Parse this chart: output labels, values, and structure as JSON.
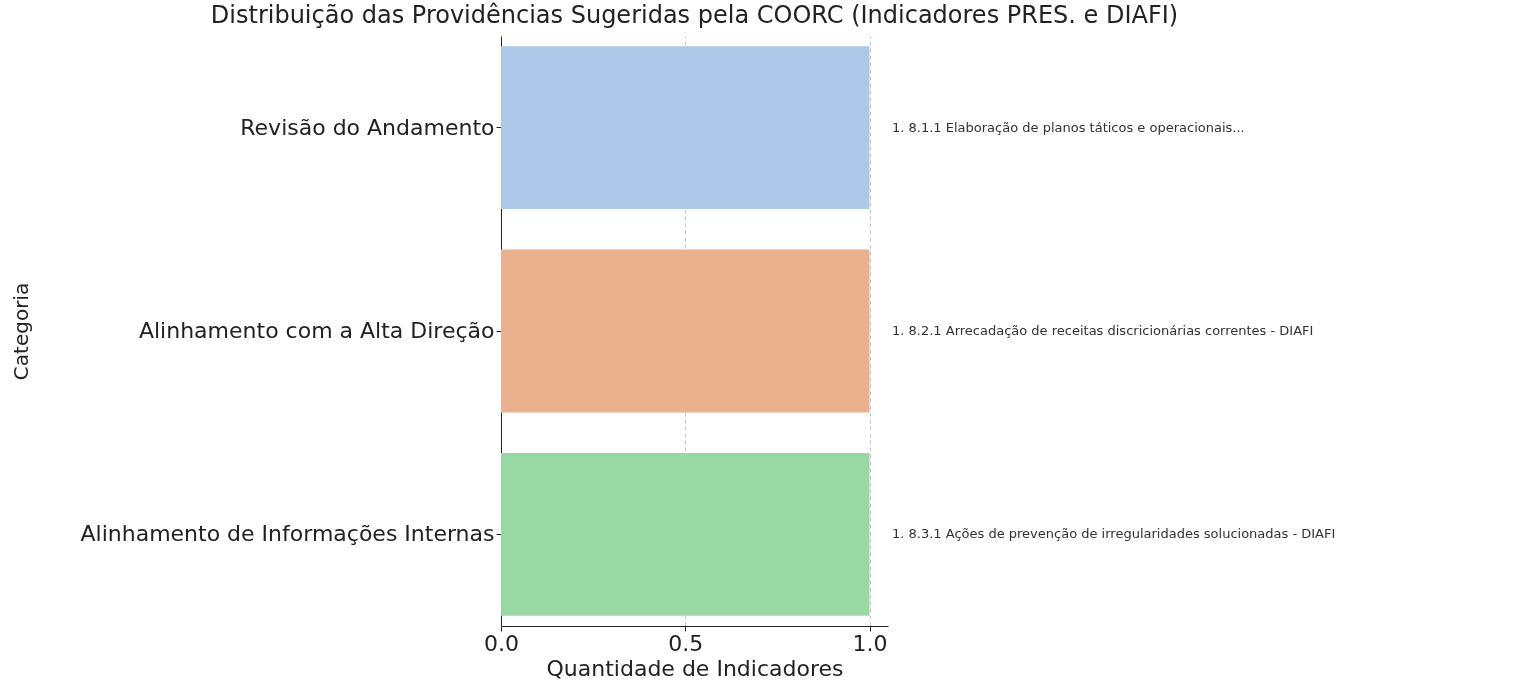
{
  "chart_data": {
    "type": "bar",
    "orientation": "horizontal",
    "title": "Distribuição das Providências Sugeridas pela COORC (Indicadores PRES. e DIAFI)",
    "xlabel": "Quantidade de Indicadores",
    "ylabel": "Categoria",
    "categories": [
      "Revisão do Andamento",
      "Alinhamento com a Alta Direção",
      "Alinhamento de Informações Internas"
    ],
    "values": [
      1,
      1,
      1
    ],
    "colors": [
      "#aec7e8",
      "#ebb08e",
      "#98d8a5"
    ],
    "xlim": [
      0,
      1.05
    ],
    "xticks": [
      {
        "value": 0,
        "label": "0.0"
      },
      0.5,
      {
        "value": 1,
        "label": "1.0"
      }
    ],
    "grid": "x",
    "annotations": [
      "1. 8.1.1 Elaboração de planos táticos e operacionais...",
      "1. 8.2.1 Arrecadação de receitas discricionárias correntes - DIAFI",
      "1. 8.3.1 Ações de prevenção de irregularidades solucionadas - DIAFI"
    ]
  }
}
